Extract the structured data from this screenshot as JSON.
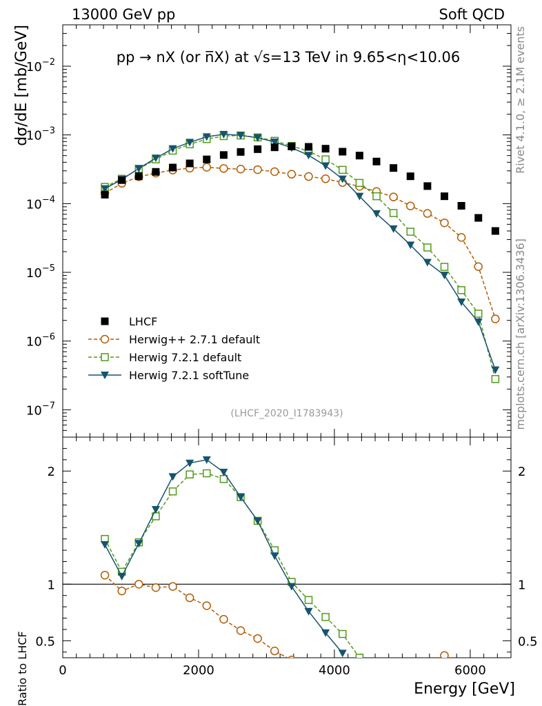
{
  "header": {
    "left": "13000 GeV pp",
    "right": "Soft QCD"
  },
  "side": {
    "rivet": "Rivet 4.1.0, ≥ 2.1M events",
    "mcplots": "mcplots.cern.ch [arXiv:1306.3436]"
  },
  "chart_data": {
    "type": "scatter",
    "title": "pp → nX (or n̅X) at √s=13 TeV in 9.65<η<10.06",
    "analysis_label": "(LHCF_2020_I1783943)",
    "xlabel": "Energy [GeV]",
    "ylabel": "dσ/dE [mb/GeV]",
    "ratio_ylabel": "Ratio to LHCF",
    "xlim": [
      0,
      6600
    ],
    "ylim_log": [
      4e-08,
      0.04
    ],
    "ratio_ylim": [
      0.35,
      2.3
    ],
    "x_ticks": [
      0,
      2000,
      4000,
      6000
    ],
    "y_tick_labels": [
      {
        "value": 0.01,
        "base": "10",
        "exp": "−2"
      },
      {
        "value": 0.001,
        "base": "10",
        "exp": "−3"
      },
      {
        "value": 0.0001,
        "base": "10",
        "exp": "−4"
      },
      {
        "value": 1e-05,
        "base": "10",
        "exp": "−5"
      },
      {
        "value": 1e-06,
        "base": "10",
        "exp": "−6"
      },
      {
        "value": 1e-07,
        "base": "10",
        "exp": "−7"
      }
    ],
    "ratio_ticks": [
      0.5,
      1,
      2
    ],
    "x": [
      620,
      870,
      1120,
      1370,
      1620,
      1870,
      2120,
      2370,
      2620,
      2870,
      3120,
      3370,
      3620,
      3870,
      4120,
      4370,
      4620,
      4870,
      5120,
      5370,
      5620,
      5870,
      6120,
      6370
    ],
    "series": [
      {
        "name": "LHCF",
        "marker": "filled-square",
        "line": "none",
        "color": "#000000",
        "values": [
          0.000135,
          0.00022,
          0.00025,
          0.00029,
          0.000335,
          0.000385,
          0.00044,
          0.00051,
          0.000565,
          0.00062,
          0.00066,
          0.00068,
          0.00067,
          0.00063,
          0.00057,
          0.0005,
          0.00041,
          0.00033,
          0.00025,
          0.00018,
          0.000128,
          9.3e-05,
          6.2e-05,
          4e-05
        ]
      },
      {
        "name": "Herwig++ 2.7.1 default",
        "marker": "open-circle",
        "line": "dashed",
        "color": "#b25b00",
        "values": [
          0.000142,
          0.000198,
          0.000246,
          0.000278,
          0.000308,
          0.000328,
          0.000338,
          0.000325,
          0.000318,
          0.000312,
          0.000292,
          0.000268,
          0.000248,
          0.00023,
          0.000203,
          0.000178,
          0.00015,
          0.000125,
          9.25e-05,
          7.2e-05,
          5.25e-05,
          3.22e-05,
          1.21e-05,
          2.1e-06
        ],
        "ratio": [
          1.08,
          0.94,
          1.0,
          0.97,
          0.98,
          0.88,
          0.81,
          0.69,
          0.59,
          0.52,
          0.41,
          0.33,
          null,
          null,
          null,
          null,
          null,
          null,
          null,
          null,
          0.37,
          null,
          null,
          null
        ]
      },
      {
        "name": "Herwig 7.2.1 default",
        "marker": "open-square",
        "line": "dashed",
        "color": "#4f9a18",
        "values": [
          0.000175,
          0.00023,
          0.00032,
          0.00044,
          0.00059,
          0.00073,
          0.00087,
          0.00096,
          0.00098,
          0.00092,
          0.00082,
          0.00069,
          0.00058,
          0.00044,
          0.00031,
          0.0002,
          0.000128,
          7.3e-05,
          3.9e-05,
          2.3e-05,
          1.2e-05,
          5.5e-06,
          2.5e-06,
          2.8e-07
        ],
        "ratio": [
          1.4,
          1.11,
          1.37,
          1.6,
          1.82,
          1.97,
          1.98,
          1.93,
          1.77,
          1.56,
          1.3,
          1.02,
          0.86,
          0.71,
          0.56,
          0.35,
          null,
          null,
          null,
          null,
          null,
          null,
          null,
          null
        ]
      },
      {
        "name": "Herwig 7.2.1 softTune",
        "marker": "filled-triangle-down",
        "line": "solid",
        "color": "#16546e",
        "values": [
          0.000165,
          0.000225,
          0.000325,
          0.00046,
          0.00063,
          0.00078,
          0.00094,
          0.00102,
          0.000985,
          0.00091,
          0.00079,
          0.00065,
          0.000505,
          0.000355,
          0.000228,
          0.000128,
          7.15e-05,
          4.3e-05,
          2.5e-05,
          1.4e-05,
          9.1e-06,
          3.7e-06,
          1.9e-06,
          3.8e-07
        ],
        "ratio": [
          1.35,
          1.07,
          1.36,
          1.66,
          1.95,
          2.07,
          2.1,
          1.99,
          1.77,
          1.56,
          1.25,
          0.98,
          0.76,
          0.57,
          0.39,
          null,
          null,
          null,
          null,
          null,
          null,
          null,
          null,
          null
        ]
      }
    ]
  }
}
